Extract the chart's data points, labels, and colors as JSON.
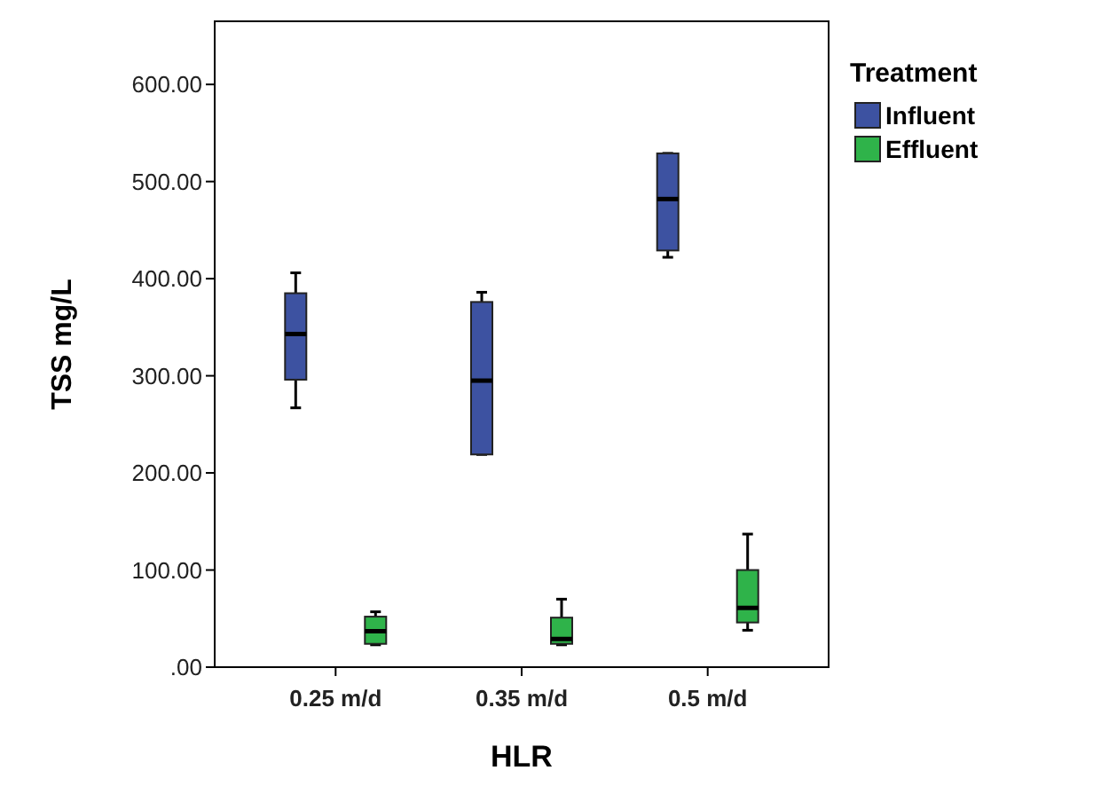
{
  "chart_data": {
    "type": "box",
    "xlabel": "HLR",
    "ylabel": "TSS mg/L",
    "legend_title": "Treatment",
    "legend": "top right",
    "categories": [
      "0.25 m/d",
      "0.35 m/d",
      "0.5 m/d"
    ],
    "ylim": [
      0,
      665
    ],
    "yticks": [
      {
        "value": 0,
        "label": ".00"
      },
      {
        "value": 100,
        "label": "100.00"
      },
      {
        "value": 200,
        "label": "200.00"
      },
      {
        "value": 300,
        "label": "300.00"
      },
      {
        "value": 400,
        "label": "400.00"
      },
      {
        "value": 500,
        "label": "500.00"
      },
      {
        "value": 600,
        "label": "600.00"
      }
    ],
    "grid": false,
    "series": [
      {
        "name": "Influent",
        "color": "#3d52a1",
        "boxes": [
          {
            "low": 267,
            "q1": 296,
            "median": 343,
            "q3": 385,
            "high": 406
          },
          {
            "low": 219,
            "q1": 219,
            "median": 295,
            "q3": 376,
            "high": 386
          },
          {
            "low": 422,
            "q1": 429,
            "median": 482,
            "q3": 529,
            "high": 529
          }
        ]
      },
      {
        "name": "Effluent",
        "color": "#2fb34a",
        "boxes": [
          {
            "low": 23,
            "q1": 24,
            "median": 37,
            "q3": 52,
            "high": 57
          },
          {
            "low": 23,
            "q1": 24,
            "median": 29,
            "q3": 51,
            "high": 70
          },
          {
            "low": 38,
            "q1": 46,
            "median": 61,
            "q3": 100,
            "high": 137
          }
        ]
      }
    ]
  }
}
